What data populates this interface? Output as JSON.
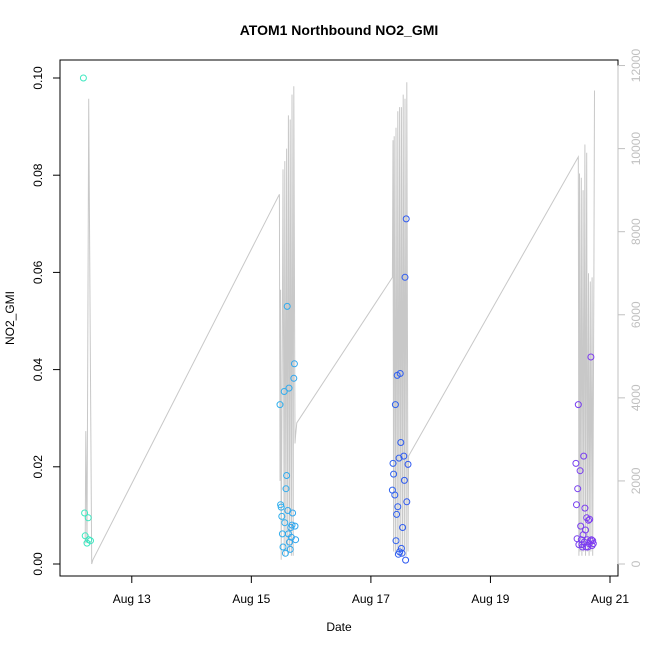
{
  "chart_data": {
    "type": "scatter",
    "title": "ATOM1 Northbound NO2_GMI",
    "xlabel": "Date",
    "ylabel": "NO2_GMI",
    "x_unit": "day of August (fractional)",
    "xlim": [
      12.05,
      21.0
    ],
    "ylim": [
      0,
      0.1
    ],
    "y2lim": [
      0,
      11700
    ],
    "x_ticks": [
      {
        "value": 13,
        "label": "Aug 13"
      },
      {
        "value": 15,
        "label": "Aug 15"
      },
      {
        "value": 17,
        "label": "Aug 17"
      },
      {
        "value": 19,
        "label": "Aug 19"
      },
      {
        "value": 21,
        "label": "Aug 21"
      }
    ],
    "y_ticks": [
      {
        "value": 0,
        "label": "0.00"
      },
      {
        "value": 0.02,
        "label": "0.02"
      },
      {
        "value": 0.04,
        "label": "0.04"
      },
      {
        "value": 0.06,
        "label": "0.06"
      },
      {
        "value": 0.08,
        "label": "0.08"
      },
      {
        "value": 0.1,
        "label": "0.10"
      }
    ],
    "y2_ticks": [
      {
        "value": 0,
        "label": "0"
      },
      {
        "value": 2000,
        "label": "2000"
      },
      {
        "value": 4000,
        "label": "4000"
      },
      {
        "value": 6000,
        "label": "6000"
      },
      {
        "value": 8000,
        "label": "8000"
      },
      {
        "value": 10000,
        "label": "10000"
      },
      {
        "value": 12000,
        "label": "12000"
      }
    ],
    "grid": false,
    "colors": {
      "point_stroke_range": [
        "#3fe8c0",
        "#31c2ee",
        "#2f4ef0",
        "#7f3df0"
      ],
      "altitude_line": "#c8c8c8"
    },
    "altitude_profile": {
      "name": "altitude",
      "axis": "right",
      "x": [
        12.22,
        12.23,
        12.25,
        12.27,
        12.28,
        12.33,
        12.35,
        15.47,
        15.48,
        15.49,
        15.5,
        15.52,
        15.53,
        15.55,
        15.56,
        15.58,
        15.59,
        15.61,
        15.62,
        15.64,
        15.65,
        15.67,
        15.68,
        15.7,
        15.71,
        15.73,
        15.74,
        15.76,
        17.36,
        17.37,
        17.38,
        17.39,
        17.41,
        17.42,
        17.44,
        17.45,
        17.47,
        17.48,
        17.5,
        17.51,
        17.53,
        17.54,
        17.56,
        17.57,
        17.59,
        17.6,
        17.62,
        17.63,
        20.47,
        20.48,
        20.49,
        20.5,
        20.52,
        20.53,
        20.55,
        20.56,
        20.58,
        20.59,
        20.61,
        20.62,
        20.64,
        20.65,
        20.67,
        20.68,
        20.7,
        20.71,
        20.73,
        20.74
      ],
      "y": [
        500,
        3200,
        500,
        7800,
        11200,
        0,
        100,
        8900,
        2000,
        6600,
        100,
        5800,
        9500,
        200,
        9700,
        300,
        10000,
        200,
        10800,
        300,
        10700,
        200,
        11300,
        200,
        11500,
        2900,
        3100,
        3400,
        6900,
        10200,
        300,
        10300,
        200,
        10500,
        300,
        10900,
        200,
        11000,
        300,
        11000,
        200,
        11300,
        300,
        11200,
        200,
        11600,
        300,
        2600,
        9800,
        200,
        9400,
        300,
        9300,
        200,
        9000,
        300,
        10100,
        200,
        9900,
        300,
        7000,
        200,
        6800,
        300,
        6900,
        200,
        7000,
        11400
      ]
    },
    "series": [
      {
        "x": [
          12.19,
          12.21,
          12.22,
          12.25,
          12.27,
          12.28,
          12.31
        ],
        "y": [
          0.1,
          0.0105,
          0.0058,
          0.0043,
          0.0095,
          0.005,
          0.0048
        ]
      },
      {
        "x": [
          15.48,
          15.49,
          15.5,
          15.51,
          15.52,
          15.53,
          15.55,
          15.56,
          15.57,
          15.58,
          15.59,
          15.6,
          15.61,
          15.62,
          15.63,
          15.64,
          15.65,
          15.66,
          15.67,
          15.68,
          15.69,
          15.71,
          15.72,
          15.73,
          15.74
        ],
        "y": [
          0.0328,
          0.0122,
          0.0117,
          0.0098,
          0.0062,
          0.0035,
          0.0355,
          0.0085,
          0.0022,
          0.0155,
          0.0182,
          0.053,
          0.011,
          0.0062,
          0.0362,
          0.0045,
          0.003,
          0.0075,
          0.0055,
          0.008,
          0.0105,
          0.0382,
          0.0412,
          0.0078,
          0.005
        ]
      },
      {
        "x": [
          17.36,
          17.37,
          17.38,
          17.4,
          17.41,
          17.42,
          17.43,
          17.44,
          17.45,
          17.46,
          17.47,
          17.48,
          17.49,
          17.5,
          17.51,
          17.52,
          17.53,
          17.55,
          17.56,
          17.57,
          17.58,
          17.59,
          17.6,
          17.62
        ],
        "y": [
          0.0152,
          0.0207,
          0.0185,
          0.0142,
          0.0328,
          0.0048,
          0.0102,
          0.0388,
          0.0118,
          0.002,
          0.0218,
          0.0025,
          0.0392,
          0.025,
          0.0032,
          0.0022,
          0.0075,
          0.0222,
          0.0172,
          0.059,
          0.0008,
          0.071,
          0.0128,
          0.0205
        ]
      },
      {
        "x": [
          20.43,
          20.44,
          20.45,
          20.46,
          20.47,
          20.48,
          20.5,
          20.51,
          20.52,
          20.53,
          20.54,
          20.55,
          20.56,
          20.57,
          20.58,
          20.59,
          20.6,
          20.61,
          20.62,
          20.63,
          20.64,
          20.65,
          20.66,
          20.67,
          20.68,
          20.69,
          20.7,
          20.71,
          20.72
        ],
        "y": [
          0.0207,
          0.0122,
          0.0052,
          0.0155,
          0.0328,
          0.004,
          0.0192,
          0.0078,
          0.005,
          0.004,
          0.0035,
          0.006,
          0.0222,
          0.0045,
          0.0115,
          0.007,
          0.0035,
          0.0095,
          0.005,
          0.0035,
          0.009,
          0.0042,
          0.0092,
          0.0048,
          0.0426,
          0.005,
          0.0038,
          0.0048,
          0.0042
        ]
      }
    ]
  }
}
